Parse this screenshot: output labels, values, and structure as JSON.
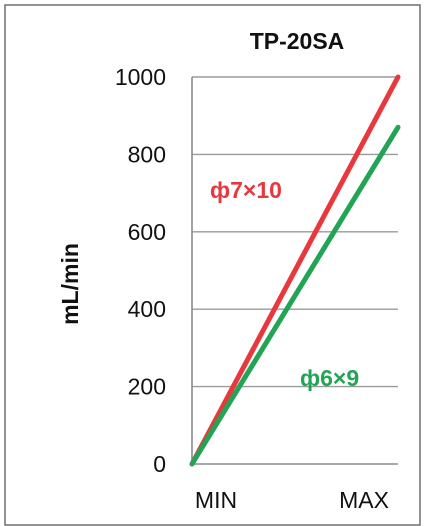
{
  "chart_data": {
    "type": "line",
    "title": "TP-20SA",
    "xlabel": "",
    "ylabel": "mL/min",
    "x_tick_labels": [
      "MIN",
      "MAX"
    ],
    "x": [
      0,
      1
    ],
    "ylim": [
      0,
      1000
    ],
    "y_ticks": [
      0,
      200,
      400,
      600,
      800,
      1000
    ],
    "grid": true,
    "series": [
      {
        "name": "ф7×10",
        "color": "#e8383d",
        "values": [
          0,
          1000
        ]
      },
      {
        "name": "ф6×9",
        "color": "#21a454",
        "values": [
          0,
          870
        ]
      }
    ]
  }
}
